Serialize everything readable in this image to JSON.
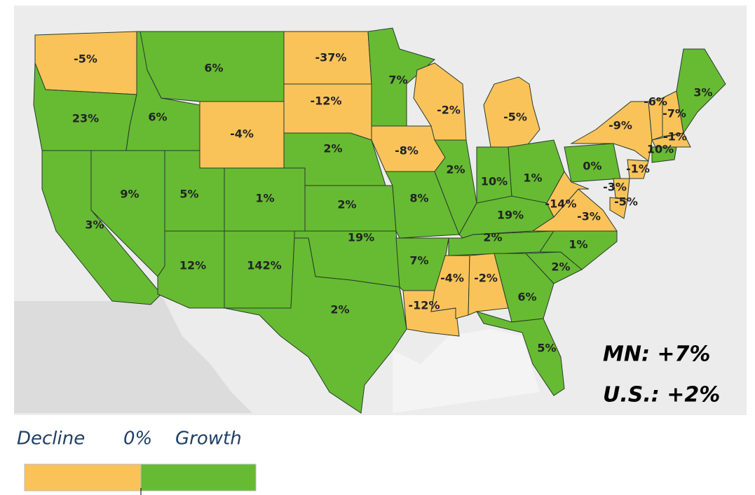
{
  "states": [
    {
      "value": -5,
      "label": "-5%"
    },
    {
      "value": 23,
      "label": "23%"
    },
    {
      "value": 3,
      "label": "3%"
    },
    {
      "value": 9,
      "label": "9%"
    },
    {
      "value": 6,
      "label": "6%"
    },
    {
      "value": 6,
      "label": "6%"
    },
    {
      "value": -4,
      "label": "-4%"
    },
    {
      "value": 5,
      "label": "5%"
    },
    {
      "value": 1,
      "label": "1%"
    },
    {
      "value": 12,
      "label": "12%"
    },
    {
      "value": 142,
      "label": "142%"
    },
    {
      "value": -37,
      "label": "-37%"
    },
    {
      "value": -12,
      "label": "-12%"
    },
    {
      "value": 2,
      "label": "2%"
    },
    {
      "value": 2,
      "label": "2%"
    },
    {
      "value": 19,
      "label": "19%"
    },
    {
      "value": 2,
      "label": "2%"
    },
    {
      "value": 7,
      "label": "7%"
    },
    {
      "value": -8,
      "label": "-8%"
    },
    {
      "value": 8,
      "label": "8%"
    },
    {
      "value": 7,
      "label": "7%"
    },
    {
      "value": -12,
      "label": "-12%"
    },
    {
      "value": -2,
      "label": "-2%"
    },
    {
      "value": 2,
      "label": "2%"
    },
    {
      "value": -5,
      "label": "-5%"
    },
    {
      "value": 10,
      "label": "10%"
    },
    {
      "value": 1,
      "label": "1%"
    },
    {
      "value": 19,
      "label": "19%"
    },
    {
      "value": 2,
      "label": "2%"
    },
    {
      "value": -4,
      "label": "-4%"
    },
    {
      "value": -2,
      "label": "-2%"
    },
    {
      "value": 6,
      "label": "6%"
    },
    {
      "value": 5,
      "label": "5%"
    },
    {
      "value": 2,
      "label": "2%"
    },
    {
      "value": 1,
      "label": "1%"
    },
    {
      "value": -3,
      "label": "-3%"
    },
    {
      "value": -14,
      "label": "-14%"
    },
    {
      "value": 0,
      "label": "0%"
    },
    {
      "value": -9,
      "label": "-9%"
    },
    {
      "value": -1,
      "label": "-1%"
    },
    {
      "value": -3,
      "label": "-3%"
    },
    {
      "value": -5,
      "label": "-5%"
    },
    {
      "value": -6,
      "label": "-6%"
    },
    {
      "value": -7,
      "label": "-7%"
    },
    {
      "value": 3,
      "label": "3%"
    },
    {
      "value": -1,
      "label": "-1%"
    },
    {
      "value": 10,
      "label": "10%"
    }
  ],
  "callouts": [
    "MN:  +7%",
    "U.S.: +2%"
  ],
  "legend": {
    "decline": "Decline",
    "zero": "0%",
    "growth": "Growth"
  }
}
